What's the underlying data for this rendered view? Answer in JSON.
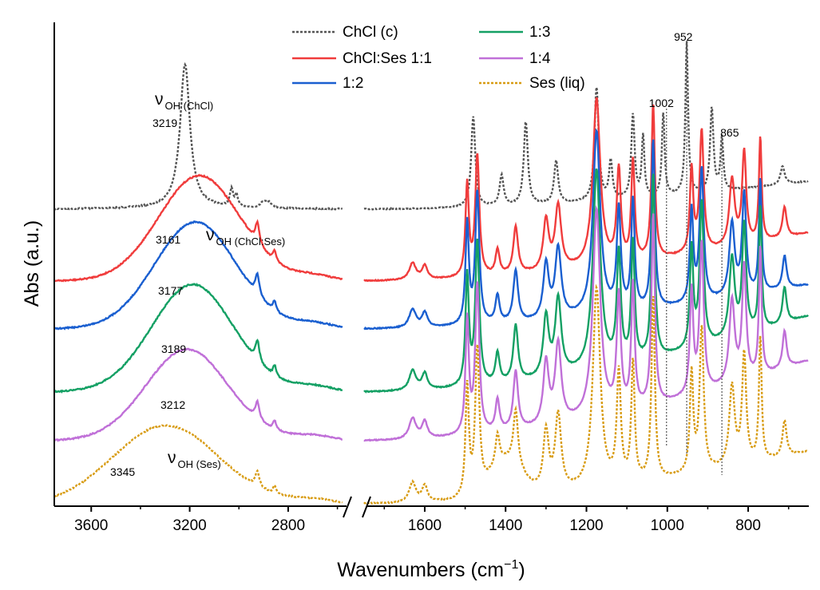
{
  "chart_data": {
    "type": "line",
    "title": "",
    "xlabel": "Wavenumbers (cm",
    "xlabel_sup": "−1",
    "xlabel_close": ")",
    "ylabel": "Abs (a.u.)",
    "x_scale": "broken",
    "x_reversed": true,
    "x_segments": [
      {
        "xlim": [
          3750,
          2550
        ],
        "ticks": [
          "3600",
          "3200",
          "2800"
        ]
      },
      {
        "xlim": [
          1750,
          650
        ],
        "ticks": [
          "1600",
          "1400",
          "1200",
          "1000",
          "800"
        ]
      }
    ],
    "y_ticks": "none",
    "grid": false,
    "legend_position": "top",
    "series": [
      {
        "name": "ChCl (c)",
        "color": "#555555",
        "dash": "dotted"
      },
      {
        "name": "ChCl:Ses 1:1",
        "color": "#f03c3c",
        "dash": "solid"
      },
      {
        "name": "1:2",
        "color": "#1a5fd0",
        "dash": "solid"
      },
      {
        "name": "1:3",
        "color": "#14a064",
        "dash": "solid"
      },
      {
        "name": "1:4",
        "color": "#c070d8",
        "dash": "solid"
      },
      {
        "name": "Ses (liq)",
        "color": "#d89c14",
        "dash": "dotted"
      }
    ],
    "oh_peaks": [
      "3219",
      "3161",
      "3177",
      "3189",
      "3212",
      "3345"
    ],
    "oh_labels": [
      {
        "nu": "ν",
        "sub": "OH (ChCl)"
      },
      {
        "nu": "ν",
        "sub": "OH (ChCl:Ses)"
      },
      {
        "nu": "ν",
        "sub": "OH (Ses)"
      }
    ],
    "fingerprint_markers": [
      "952",
      "1002",
      "865"
    ]
  }
}
